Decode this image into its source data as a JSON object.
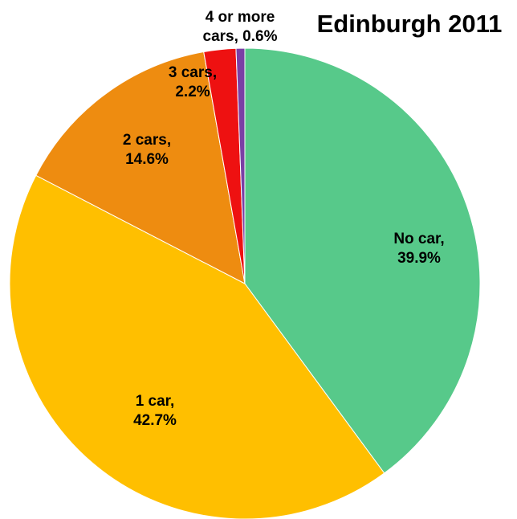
{
  "chart_data": {
    "type": "pie",
    "title": "Edinburgh 2011",
    "categories": [
      "No car",
      "1 car",
      "2 cars",
      "3 cars",
      "4 or more cars"
    ],
    "values": [
      39.9,
      42.7,
      14.6,
      2.2,
      0.6
    ],
    "unit": "%",
    "colors": [
      "#57C98A",
      "#FFBF00",
      "#EE8C10",
      "#EE1111",
      "#7A3FA5"
    ],
    "labels": [
      [
        "No car,",
        "39.9%"
      ],
      [
        "1 car,",
        "42.7%"
      ],
      [
        "2 cars,",
        "14.6%"
      ],
      [
        "3 cars,",
        "2.2%"
      ],
      [
        "4 or more",
        "cars, 0.6%"
      ]
    ]
  }
}
